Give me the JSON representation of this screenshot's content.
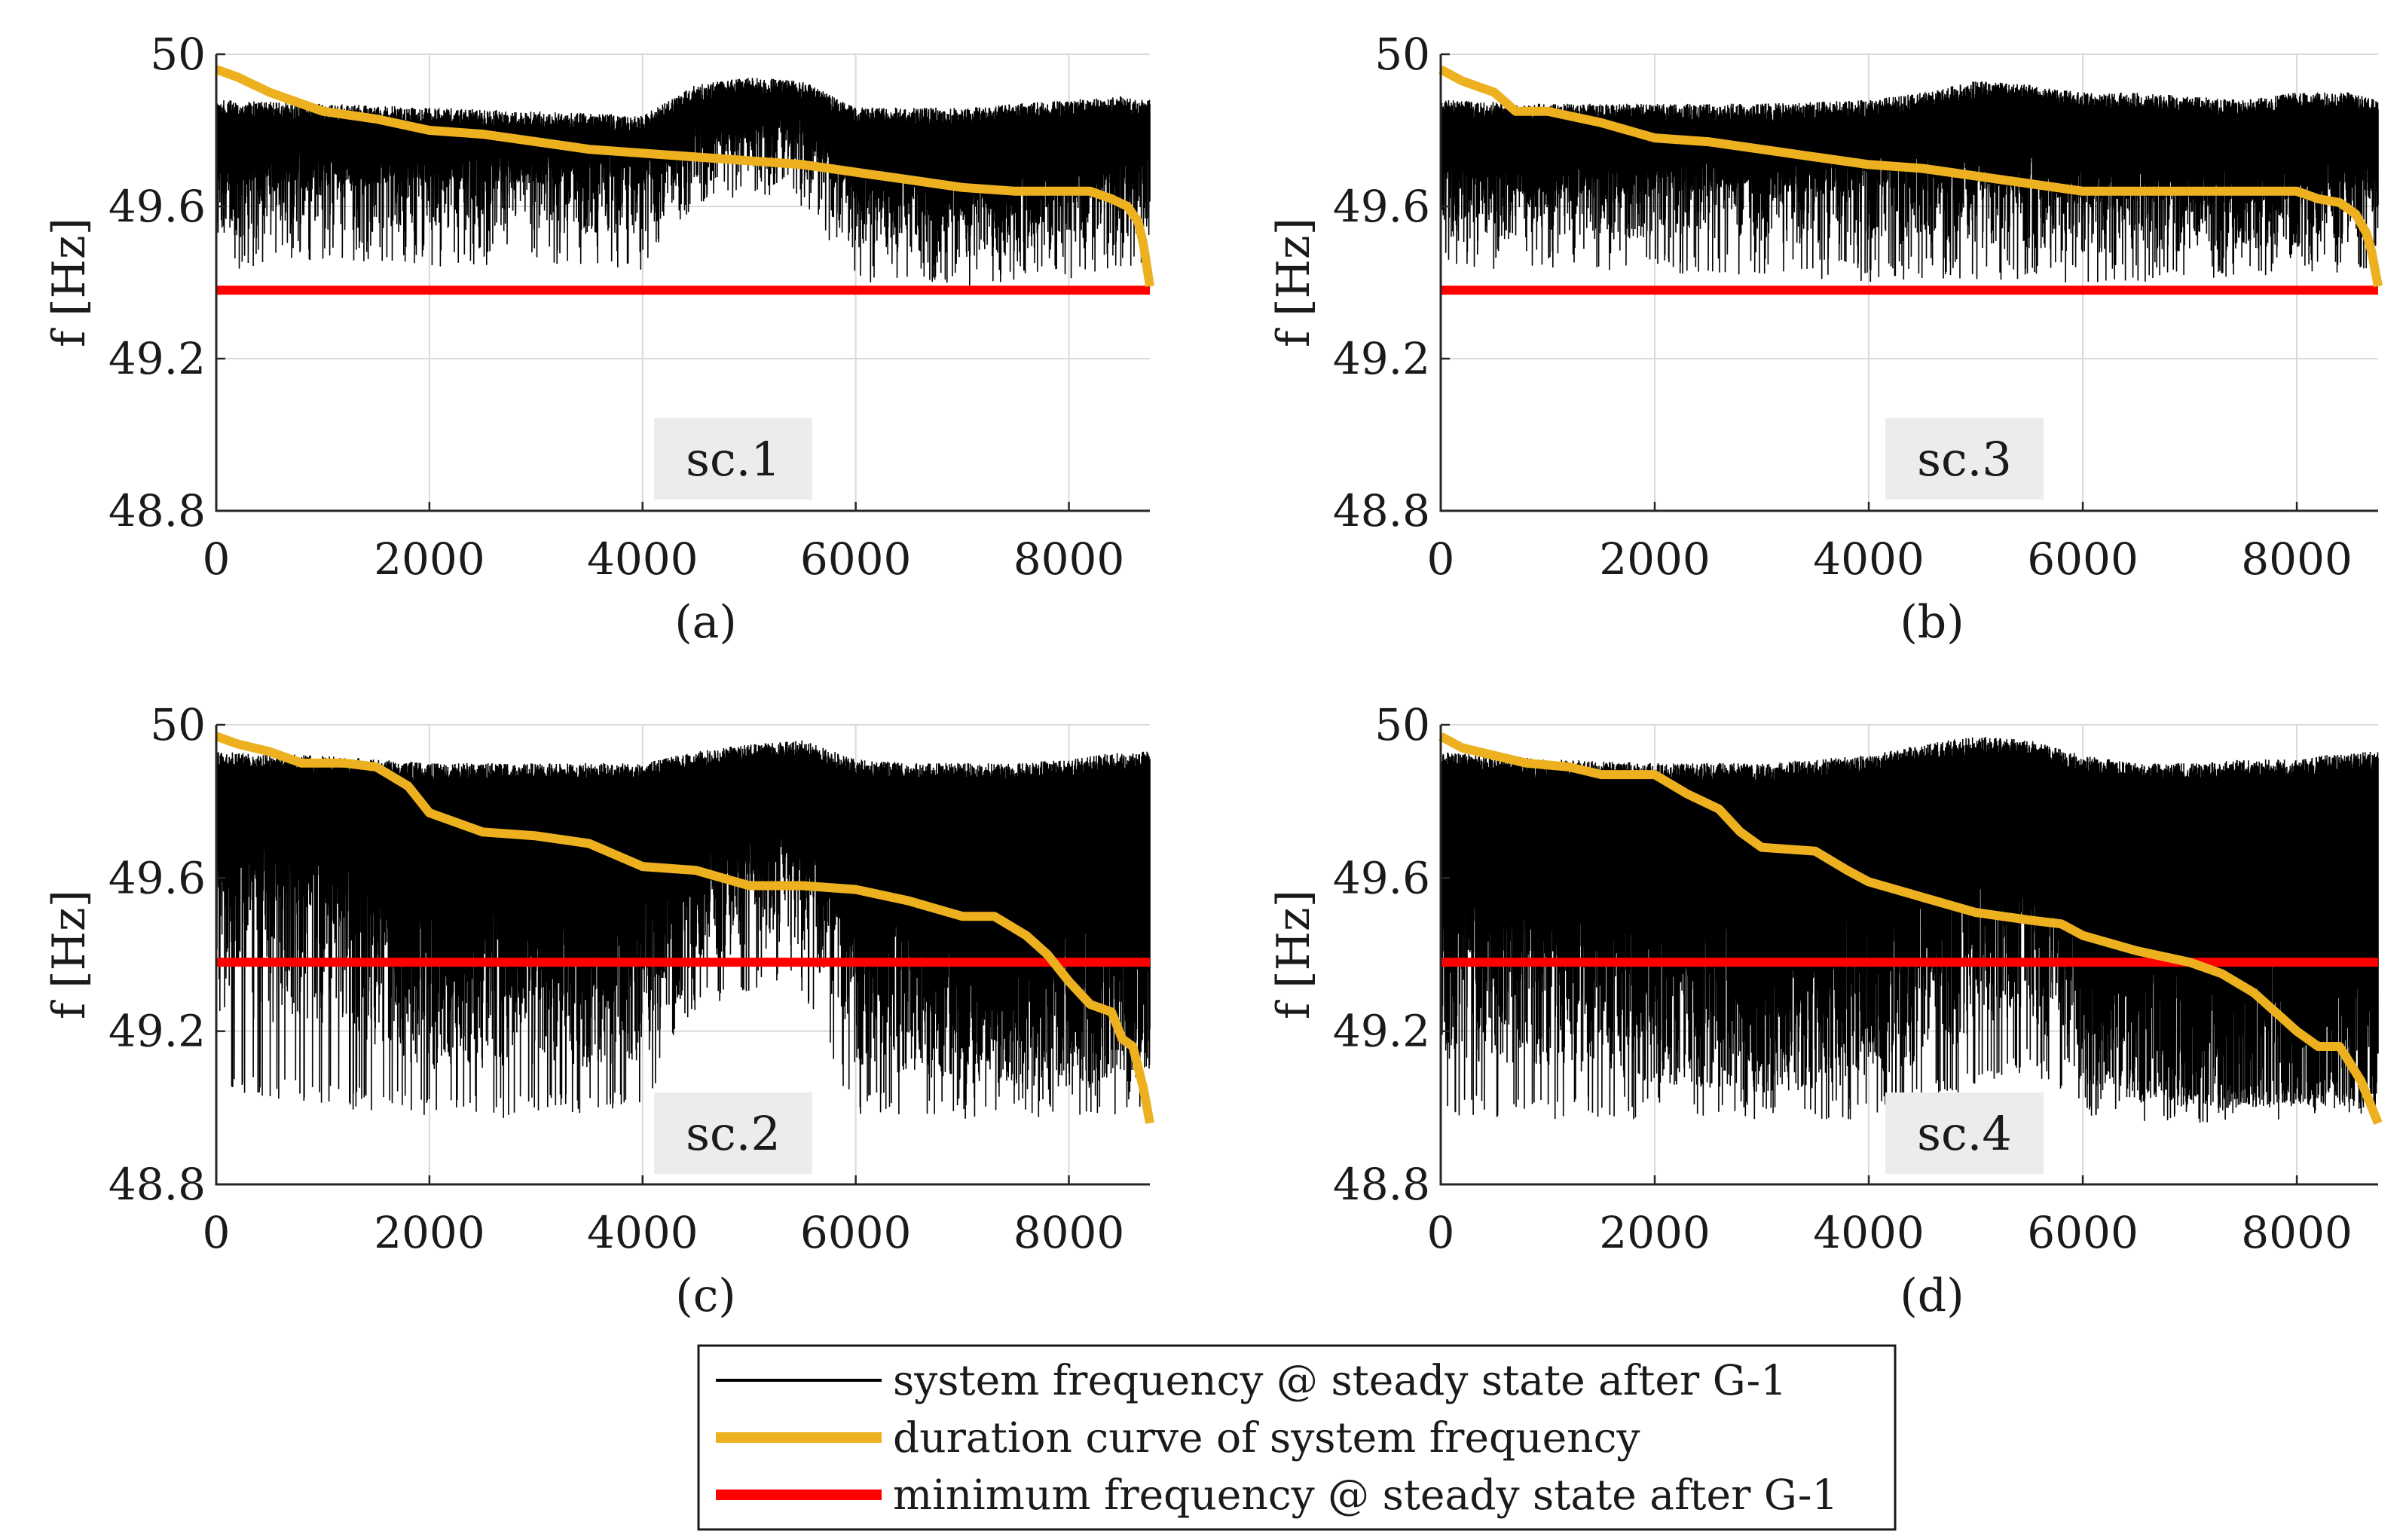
{
  "colors": {
    "system_frequency": "#000000",
    "duration_curve": "#EDB120",
    "min_frequency": "#FF0000",
    "grid": "#d9d9d9",
    "scenario_box": "#ececec"
  },
  "legend": {
    "entries": [
      "system frequency @ steady state after G-1",
      "duration curve of system frequency",
      "minimum frequency @ steady state after G-1"
    ]
  },
  "chart_data": [
    {
      "type": "line",
      "panel": "(a)",
      "scenario": "sc.1",
      "ylabel": "f [Hz]",
      "xlim": [
        0,
        8760
      ],
      "ylim": [
        48.8,
        50
      ],
      "xticks": [
        "0",
        "2000",
        "4000",
        "6000",
        "8000"
      ],
      "yticks": [
        "48.8",
        "49.2",
        "49.6",
        "50"
      ],
      "grid": true,
      "series": [
        {
          "name": "system frequency @ steady state after G-1",
          "envelope": {
            "x": [
              0,
              1000,
              2000,
              3000,
              4000,
              4500,
              5000,
              5500,
              6000,
              6500,
              7000,
              7500,
              8000,
              8500,
              8760
            ],
            "upper": [
              49.88,
              49.87,
              49.86,
              49.85,
              49.84,
              49.92,
              49.94,
              49.93,
              49.86,
              49.86,
              49.86,
              49.87,
              49.88,
              49.89,
              49.88
            ],
            "lower": [
              49.63,
              49.65,
              49.66,
              49.66,
              49.65,
              49.74,
              49.78,
              49.76,
              49.6,
              49.58,
              49.57,
              49.58,
              49.6,
              49.62,
              49.62
            ],
            "min": [
              49.42,
              49.46,
              49.44,
              49.45,
              49.43,
              49.6,
              49.62,
              49.6,
              49.39,
              49.4,
              49.39,
              49.4,
              49.41,
              49.42,
              49.44
            ]
          }
        },
        {
          "name": "duration curve of system frequency",
          "x": [
            0,
            200,
            500,
            800,
            1000,
            1500,
            2000,
            2500,
            3000,
            3500,
            4000,
            4500,
            5000,
            5500,
            6000,
            6500,
            7000,
            7500,
            8000,
            8200,
            8400,
            8550,
            8650,
            8700,
            8760
          ],
          "y": [
            49.96,
            49.94,
            49.9,
            49.87,
            49.85,
            49.83,
            49.8,
            49.79,
            49.77,
            49.75,
            49.74,
            49.73,
            49.72,
            49.71,
            49.69,
            49.67,
            49.65,
            49.64,
            49.64,
            49.64,
            49.62,
            49.6,
            49.56,
            49.5,
            49.39
          ]
        },
        {
          "name": "minimum frequency @ steady state after G-1",
          "x": [
            0,
            8760
          ],
          "y": [
            49.38,
            49.38
          ]
        }
      ]
    },
    {
      "type": "line",
      "panel": "(b)",
      "scenario": "sc.3",
      "ylabel": "f [Hz]",
      "xlim": [
        0,
        8760
      ],
      "ylim": [
        48.8,
        50
      ],
      "xticks": [
        "0",
        "2000",
        "4000",
        "6000",
        "8000"
      ],
      "yticks": [
        "48.8",
        "49.2",
        "49.6",
        "50"
      ],
      "grid": true,
      "series": [
        {
          "name": "system frequency @ steady state after G-1",
          "envelope": {
            "x": [
              0,
              1000,
              2000,
              3000,
              4000,
              4500,
              5000,
              5500,
              6000,
              6500,
              7000,
              7500,
              8000,
              8500,
              8760
            ],
            "upper": [
              49.88,
              49.87,
              49.87,
              49.87,
              49.88,
              49.9,
              49.93,
              49.92,
              49.9,
              49.9,
              49.89,
              49.88,
              49.9,
              49.9,
              49.88
            ],
            "lower": [
              49.62,
              49.63,
              49.64,
              49.63,
              49.64,
              49.64,
              49.62,
              49.62,
              49.6,
              49.6,
              49.6,
              49.6,
              49.6,
              49.62,
              49.62
            ],
            "min": [
              49.42,
              49.44,
              49.42,
              49.42,
              49.4,
              49.41,
              49.4,
              49.4,
              49.39,
              49.4,
              49.4,
              49.41,
              49.42,
              49.42,
              49.44
            ]
          }
        },
        {
          "name": "duration curve of system frequency",
          "x": [
            0,
            200,
            500,
            700,
            1000,
            1500,
            2000,
            2500,
            3000,
            3500,
            4000,
            4500,
            5000,
            5500,
            6000,
            6500,
            7000,
            7500,
            8000,
            8200,
            8400,
            8550,
            8650,
            8700,
            8760
          ],
          "y": [
            49.96,
            49.93,
            49.9,
            49.85,
            49.85,
            49.82,
            49.78,
            49.77,
            49.75,
            49.73,
            49.71,
            49.7,
            49.68,
            49.66,
            49.64,
            49.64,
            49.64,
            49.64,
            49.64,
            49.62,
            49.61,
            49.58,
            49.53,
            49.48,
            49.39
          ]
        },
        {
          "name": "minimum frequency @ steady state after G-1",
          "x": [
            0,
            8760
          ],
          "y": [
            49.38,
            49.38
          ]
        }
      ]
    },
    {
      "type": "line",
      "panel": "(c)",
      "scenario": "sc.2",
      "ylabel": "f [Hz]",
      "xlim": [
        0,
        8760
      ],
      "ylim": [
        48.8,
        50
      ],
      "xticks": [
        "0",
        "2000",
        "4000",
        "6000",
        "8000"
      ],
      "yticks": [
        "48.8",
        "49.2",
        "49.6",
        "50"
      ],
      "grid": true,
      "series": [
        {
          "name": "system frequency @ steady state after G-1",
          "envelope": {
            "x": [
              0,
              1000,
              2000,
              3000,
              4000,
              4500,
              5000,
              5500,
              6000,
              6500,
              7000,
              7500,
              8000,
              8500,
              8760
            ],
            "upper": [
              49.93,
              49.92,
              49.9,
              49.9,
              49.9,
              49.93,
              49.95,
              49.96,
              49.91,
              49.9,
              49.9,
              49.9,
              49.91,
              49.93,
              49.93
            ],
            "lower": [
              49.55,
              49.5,
              49.28,
              49.28,
              49.3,
              49.5,
              49.58,
              49.6,
              49.3,
              49.25,
              49.2,
              49.15,
              49.15,
              49.18,
              49.2
            ],
            "min": [
              49.05,
              49.0,
              48.98,
              48.97,
              49.0,
              49.25,
              49.3,
              49.3,
              48.98,
              48.98,
              48.97,
              48.97,
              48.98,
              48.98,
              49.0
            ]
          }
        },
        {
          "name": "duration curve of system frequency",
          "x": [
            0,
            200,
            500,
            800,
            1200,
            1500,
            1800,
            2000,
            2500,
            3000,
            3500,
            4000,
            4500,
            5000,
            5500,
            6000,
            6500,
            7000,
            7300,
            7600,
            7800,
            8000,
            8200,
            8400,
            8500,
            8600,
            8700,
            8760
          ],
          "y": [
            49.97,
            49.95,
            49.93,
            49.9,
            49.9,
            49.89,
            49.84,
            49.77,
            49.72,
            49.71,
            49.69,
            49.63,
            49.62,
            49.58,
            49.58,
            49.57,
            49.54,
            49.5,
            49.5,
            49.45,
            49.4,
            49.33,
            49.27,
            49.25,
            49.18,
            49.16,
            49.05,
            48.96
          ]
        },
        {
          "name": "minimum frequency @ steady state after G-1",
          "x": [
            0,
            8760
          ],
          "y": [
            49.38,
            49.38
          ]
        }
      ]
    },
    {
      "type": "line",
      "panel": "(d)",
      "scenario": "sc.4",
      "ylabel": "f [Hz]",
      "xlim": [
        0,
        8760
      ],
      "ylim": [
        48.8,
        50
      ],
      "xticks": [
        "0",
        "2000",
        "4000",
        "6000",
        "8000"
      ],
      "yticks": [
        "48.8",
        "49.2",
        "49.6",
        "50"
      ],
      "grid": true,
      "series": [
        {
          "name": "system frequency @ steady state after G-1",
          "envelope": {
            "x": [
              0,
              1000,
              2000,
              3000,
              4000,
              4500,
              5000,
              5500,
              6000,
              6500,
              7000,
              7500,
              8000,
              8500,
              8760
            ],
            "upper": [
              49.93,
              49.91,
              49.9,
              49.9,
              49.92,
              49.95,
              49.97,
              49.96,
              49.92,
              49.9,
              49.9,
              49.91,
              49.91,
              49.93,
              49.93
            ],
            "lower": [
              49.35,
              49.3,
              49.2,
              49.15,
              49.2,
              49.3,
              49.4,
              49.45,
              49.2,
              49.1,
              49.05,
              49.05,
              49.05,
              49.05,
              49.08
            ],
            "min": [
              48.98,
              48.97,
              48.97,
              48.96,
              48.97,
              49.0,
              49.05,
              49.1,
              48.97,
              48.96,
              48.96,
              48.96,
              48.97,
              48.97,
              48.98
            ]
          }
        },
        {
          "name": "duration curve of system frequency",
          "x": [
            0,
            200,
            500,
            800,
            1200,
            1500,
            2000,
            2300,
            2600,
            2800,
            3000,
            3500,
            3800,
            4000,
            4500,
            5000,
            5500,
            5800,
            6000,
            6500,
            7000,
            7300,
            7600,
            7800,
            8000,
            8200,
            8400,
            8600,
            8760
          ],
          "y": [
            49.97,
            49.94,
            49.92,
            49.9,
            49.89,
            49.87,
            49.87,
            49.82,
            49.78,
            49.72,
            49.68,
            49.67,
            49.62,
            49.59,
            49.55,
            49.51,
            49.49,
            49.48,
            49.45,
            49.41,
            49.38,
            49.35,
            49.3,
            49.25,
            49.2,
            49.16,
            49.16,
            49.07,
            48.96
          ]
        },
        {
          "name": "minimum frequency @ steady state after G-1",
          "x": [
            0,
            8760
          ],
          "y": [
            49.38,
            49.38
          ]
        }
      ]
    }
  ]
}
